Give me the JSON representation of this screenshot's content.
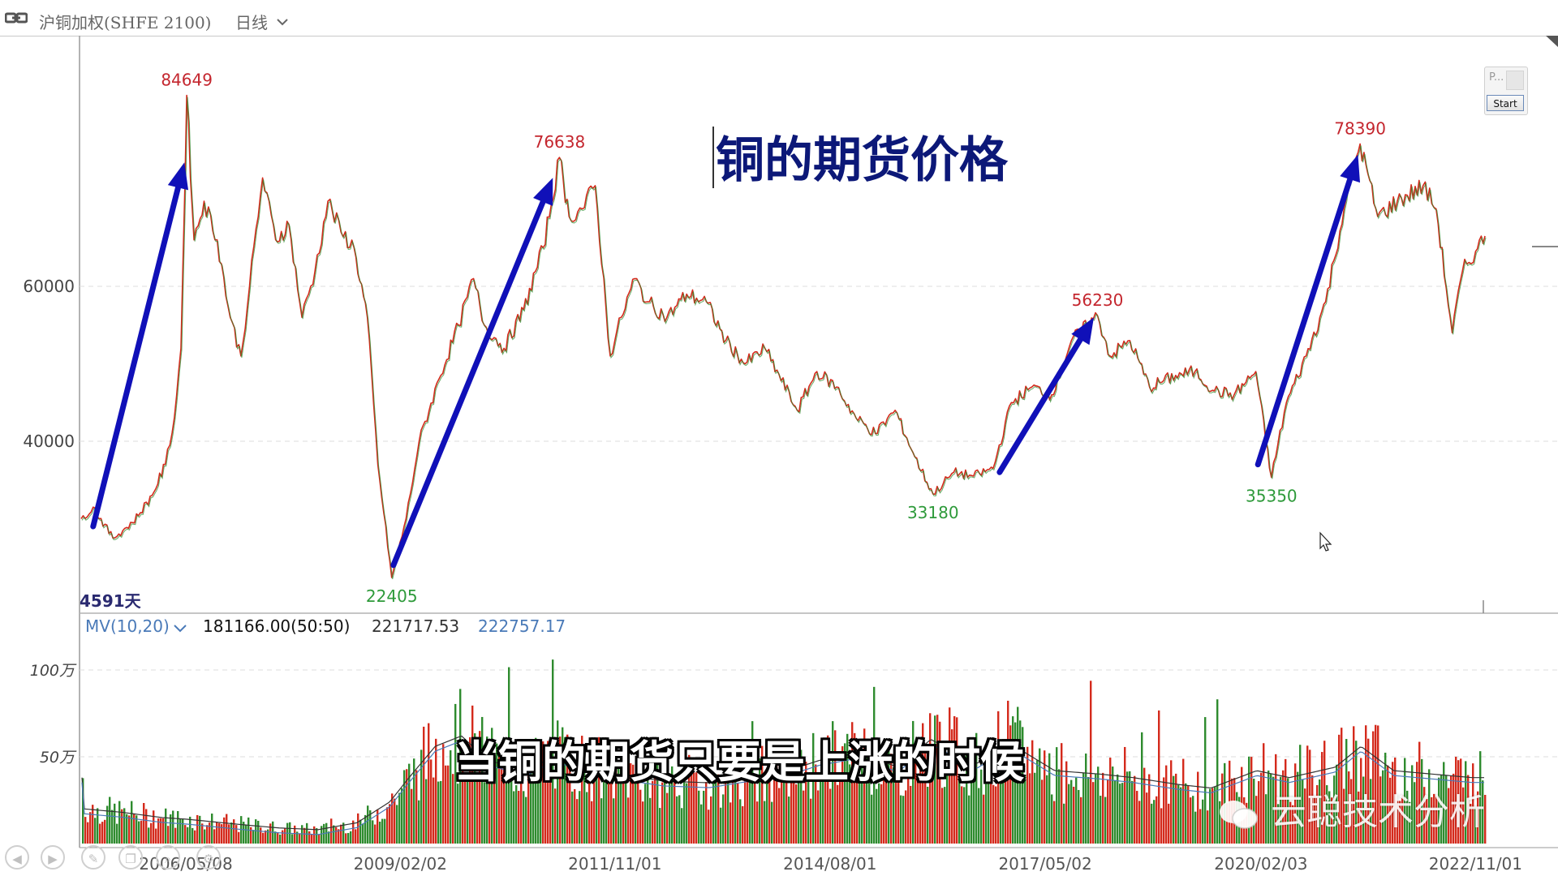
{
  "toolbar": {
    "link_icon": "chain-link-icon",
    "instrument": "沪铜加权(SHFE 2100)",
    "period": "日线",
    "period_icon": "chevron-down-icon"
  },
  "price_panel": {
    "title": "铜的期货价格",
    "bars_label": "4591天"
  },
  "volume_panel": {
    "indicator": "MV(10,20)",
    "indicator_icon": "chevron-down-icon",
    "value_main": "181166.00(50:50)",
    "value_mv10": "221717.53",
    "value_mv20": "222757.17"
  },
  "widget": {
    "label": "P...",
    "start_label": "Start"
  },
  "subtitle": "当铜的期货只要是上涨的时候",
  "watermark": "云聪技术分析",
  "nav_icons": [
    "back-icon",
    "forward-icon",
    "pen-icon",
    "copy-icon",
    "zoom-icon",
    "settings-icon"
  ],
  "colors": {
    "up": "#d42a1c",
    "down": "#2e8b2e",
    "arrow": "#1010b8",
    "high_label": "#c4262e",
    "low_label": "#2e9a3a",
    "mv10": "#333333",
    "mv20": "#4a7ab8"
  },
  "chart_data": [
    {
      "type": "line",
      "title": "铜的期货价格",
      "x_ticks": [
        "2006/05/08",
        "2009/02/02",
        "2011/11/01",
        "2014/08/01",
        "2017/05/02",
        "2020/02/03",
        "2022/11/01"
      ],
      "y_ticks": [
        40000,
        60000
      ],
      "ylim": [
        20000,
        87000
      ],
      "series": [
        {
          "values": [
            [
              "2005/01/04",
              30000
            ],
            [
              "2005/03/01",
              31500
            ],
            [
              "2005/06/01",
              27500
            ],
            [
              "2005/09/01",
              29500
            ],
            [
              "2005/12/01",
              33000
            ],
            [
              "2006/02/01",
              37000
            ],
            [
              "2006/03/15",
              43000
            ],
            [
              "2006/04/15",
              52000
            ],
            [
              "2006/05/12",
              84649
            ],
            [
              "2006/06/15",
              66000
            ],
            [
              "2006/08/01",
              71000
            ],
            [
              "2006/10/01",
              66000
            ],
            [
              "2006/12/01",
              56000
            ],
            [
              "2007/01/20",
              51000
            ],
            [
              "2007/03/01",
              60000
            ],
            [
              "2007/05/01",
              74000
            ],
            [
              "2007/07/01",
              66000
            ],
            [
              "2007/09/01",
              68000
            ],
            [
              "2007/11/01",
              56000
            ],
            [
              "2008/01/01",
              62000
            ],
            [
              "2008/03/01",
              71000
            ],
            [
              "2008/05/01",
              67000
            ],
            [
              "2008/07/01",
              65000
            ],
            [
              "2008/09/01",
              56000
            ],
            [
              "2008/10/20",
              37000
            ],
            [
              "2008/12/24",
              22405
            ],
            [
              "2009/03/01",
              30000
            ],
            [
              "2009/05/01",
              40000
            ],
            [
              "2009/08/01",
              48000
            ],
            [
              "2009/11/01",
              55000
            ],
            [
              "2010/01/10",
              61000
            ],
            [
              "2010/03/01",
              55000
            ],
            [
              "2010/06/01",
              52000
            ],
            [
              "2010/09/01",
              57000
            ],
            [
              "2010/12/01",
              65000
            ],
            [
              "2011/02/15",
              76638
            ],
            [
              "2011/04/01",
              69000
            ],
            [
              "2011/06/01",
              70000
            ],
            [
              "2011/08/01",
              73000
            ],
            [
              "2011/10/10",
              51000
            ],
            [
              "2011/12/01",
              56000
            ],
            [
              "2012/02/01",
              61000
            ],
            [
              "2012/04/01",
              58000
            ],
            [
              "2012/07/01",
              56000
            ],
            [
              "2012/10/01",
              59000
            ],
            [
              "2013/01/01",
              58000
            ],
            [
              "2013/04/01",
              53000
            ],
            [
              "2013/07/01",
              50000
            ],
            [
              "2013/10/01",
              52000
            ],
            [
              "2014/03/01",
              44000
            ],
            [
              "2014/06/01",
              49000
            ],
            [
              "2014/09/01",
              47000
            ],
            [
              "2014/12/01",
              43000
            ],
            [
              "2015/03/01",
              41000
            ],
            [
              "2015/06/01",
              44000
            ],
            [
              "2015/09/01",
              38000
            ],
            [
              "2015/11/25",
              33180
            ],
            [
              "2016/03/01",
              36000
            ],
            [
              "2016/06/01",
              35500
            ],
            [
              "2016/09/01",
              36500
            ],
            [
              "2016/11/25",
              45000
            ],
            [
              "2017/03/01",
              47000
            ],
            [
              "2017/06/01",
              46000
            ],
            [
              "2017/09/01",
              53000
            ],
            [
              "2018/01/01",
              56230
            ],
            [
              "2018/03/01",
              51000
            ],
            [
              "2018/06/01",
              53000
            ],
            [
              "2018/09/01",
              47000
            ],
            [
              "2019/01/01",
              48500
            ],
            [
              "2019/04/01",
              49000
            ],
            [
              "2019/07/01",
              46500
            ],
            [
              "2019/10/01",
              46000
            ],
            [
              "2020/01/10",
              49000
            ],
            [
              "2020/03/23",
              35350
            ],
            [
              "2020/06/01",
              45000
            ],
            [
              "2020/09/01",
              51000
            ],
            [
              "2020/12/01",
              58000
            ],
            [
              "2021/02/25",
              70000
            ],
            [
              "2021/05/11",
              78390
            ],
            [
              "2021/08/01",
              69000
            ],
            [
              "2021/11/01",
              71000
            ],
            [
              "2022/03/01",
              73000
            ],
            [
              "2022/05/01",
              70000
            ],
            [
              "2022/07/15",
              54000
            ],
            [
              "2022/09/01",
              62000
            ],
            [
              "2022/11/01",
              64500
            ],
            [
              "2022/12/15",
              66500
            ]
          ]
        }
      ],
      "annotations": [
        {
          "text": "84649",
          "date": "2006/05/12",
          "value": 84649,
          "kind": "high"
        },
        {
          "text": "76638",
          "date": "2011/02/15",
          "value": 76638,
          "kind": "high"
        },
        {
          "text": "56230",
          "date": "2018/01/01",
          "value": 56230,
          "kind": "high"
        },
        {
          "text": "78390",
          "date": "2021/05/11",
          "value": 78390,
          "kind": "high"
        },
        {
          "text": "22405",
          "date": "2008/12/24",
          "value": 22405,
          "kind": "low"
        },
        {
          "text": "33180",
          "date": "2015/11/25",
          "value": 33180,
          "kind": "low"
        },
        {
          "text": "35350",
          "date": "2020/03/23",
          "value": 35350,
          "kind": "low"
        }
      ],
      "arrows": [
        {
          "from": [
            "2005/03/01",
            29000
          ],
          "to": [
            "2006/05/01",
            76000
          ]
        },
        {
          "from": [
            "2009/01/01",
            24000
          ],
          "to": [
            "2011/01/15",
            74000
          ]
        },
        {
          "from": [
            "2016/10/01",
            36000
          ],
          "to": [
            "2017/12/15",
            56000
          ]
        },
        {
          "from": [
            "2020/01/20",
            37000
          ],
          "to": [
            "2021/05/01",
            77000
          ]
        }
      ]
    },
    {
      "type": "bar",
      "y_ticks": [
        "50万",
        "100万"
      ],
      "ylim": [
        0,
        1250000
      ],
      "series": [
        {
          "name": "成交量",
          "values": [
            [
              "2005/01",
              200000
            ],
            [
              "2005/07",
              180000
            ],
            [
              "2006/01",
              150000
            ],
            [
              "2006/05",
              140000
            ],
            [
              "2007/01",
              110000
            ],
            [
              "2007/07",
              90000
            ],
            [
              "2008/01",
              80000
            ],
            [
              "2008/07",
              120000
            ],
            [
              "2008/12",
              240000
            ],
            [
              "2009/03",
              380000
            ],
            [
              "2009/07",
              560000
            ],
            [
              "2009/11",
              620000
            ],
            [
              "2010/03",
              480000
            ],
            [
              "2010/09",
              420000
            ],
            [
              "2011/01",
              500000
            ],
            [
              "2011/07",
              440000
            ],
            [
              "2011/11",
              400000
            ],
            [
              "2012/06",
              360000
            ],
            [
              "2013/01",
              350000
            ],
            [
              "2013/06",
              380000
            ],
            [
              "2014/01",
              420000
            ],
            [
              "2014/06",
              480000
            ],
            [
              "2014/12",
              520000
            ],
            [
              "2015/06",
              440000
            ],
            [
              "2015/11",
              600000
            ],
            [
              "2016/06",
              460000
            ],
            [
              "2016/11",
              580000
            ],
            [
              "2017/06",
              420000
            ],
            [
              "2018/01",
              400000
            ],
            [
              "2018/06",
              380000
            ],
            [
              "2019/01",
              340000
            ],
            [
              "2019/06",
              320000
            ],
            [
              "2020/01",
              420000
            ],
            [
              "2020/06",
              380000
            ],
            [
              "2021/01",
              440000
            ],
            [
              "2021/05",
              560000
            ],
            [
              "2021/10",
              420000
            ],
            [
              "2022/04",
              400000
            ],
            [
              "2022/10",
              380000
            ]
          ]
        },
        {
          "name": "MV10",
          "value": 221717.53
        },
        {
          "name": "MV20",
          "value": 222757.17
        }
      ]
    }
  ]
}
